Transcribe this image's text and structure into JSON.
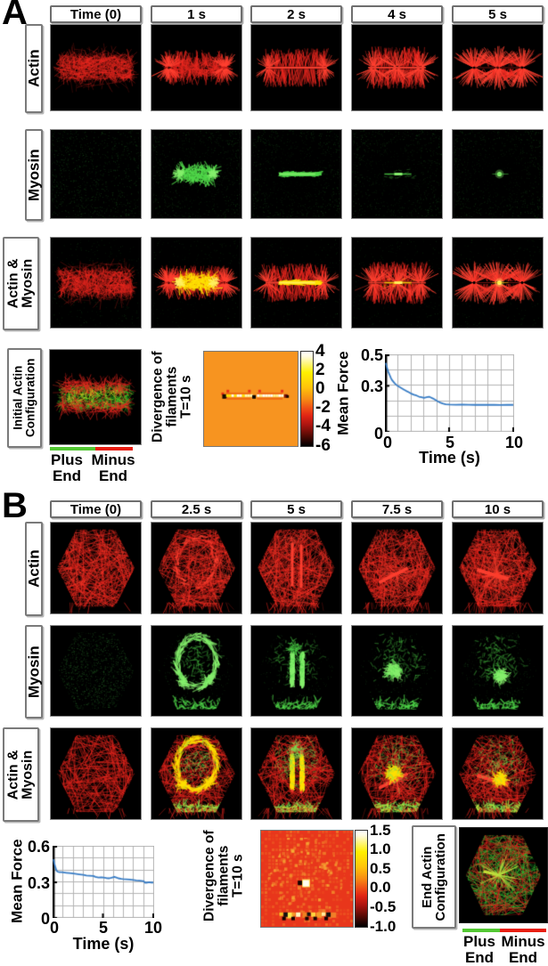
{
  "panelA": {
    "letter": "A",
    "columns": [
      "Time (0)",
      "1 s",
      "2 s",
      "4 s",
      "5 s"
    ],
    "row_labels": {
      "actin": "Actin",
      "myosin": "Myosin",
      "actin_myosin": "Actin &\nMyosin"
    },
    "init_config_label": "Initial Actin\nConfiguration",
    "legend": {
      "plus": "Plus End",
      "minus": "Minus End"
    },
    "divergence": {
      "label": "Divergence of\nfilaments",
      "time": "T=10 s",
      "colorbar_ticks": [
        "4",
        "2",
        "0",
        "-2",
        "-4",
        "-6"
      ]
    }
  },
  "panelB": {
    "letter": "B",
    "columns": [
      "Time (0)",
      "2.5 s",
      "5 s",
      "7.5 s",
      "10 s"
    ],
    "row_labels": {
      "actin": "Actin",
      "myosin": "Myosin",
      "actin_myosin": "Actin &\nMyosin"
    },
    "end_config_label": "End Actin\nConfiguration",
    "legend": {
      "plus": "Plus End",
      "minus": "Minus End"
    },
    "divergence": {
      "label": "Divergence of\nfilaments",
      "time": "T=10 s",
      "colorbar_ticks": [
        "1.5",
        "1.0",
        "0.5",
        "0.0",
        "-0.5",
        "-1.0"
      ]
    }
  },
  "colors": {
    "actin_red": "#e8261e",
    "actin_red_bright": "#ff4030",
    "myosin_green": "#50d84a",
    "myosin_green_bright": "#86ef6d",
    "overlap_yellow": "#ffe000",
    "overlap_yellow_bright": "#fff060",
    "heatmap_a_bg": "#f79420",
    "heatmap_b_bg": "#e8361b",
    "curve_blue": "#3a7ec6",
    "legend_plus_green": "#52c832",
    "legend_minus_red": "#e81d10"
  },
  "chart_data": [
    {
      "id": "mean-force-panel-a",
      "type": "line",
      "ylabel": "Mean Force",
      "xlabel": "Time (s)",
      "xlim": [
        0,
        10
      ],
      "ylim": [
        0,
        0.5
      ],
      "ytick_labels": [
        "0.5",
        "0.3",
        "0"
      ],
      "ytick_vals": [
        0.5,
        0.3,
        0
      ],
      "xtick_labels": [
        "0",
        "5",
        "10"
      ],
      "xtick_vals": [
        0,
        5,
        10
      ],
      "grid": true,
      "legend_position": "none",
      "x": [
        0,
        0.1,
        0.2,
        0.3,
        0.4,
        0.5,
        0.7,
        0.9,
        1.0,
        1.2,
        1.4,
        1.6,
        1.8,
        2.0,
        2.2,
        2.4,
        2.6,
        2.8,
        3.0,
        3.2,
        3.4,
        3.5,
        3.7,
        3.9,
        4.1,
        4.3,
        4.5,
        4.7,
        5.0,
        5.5,
        6.0,
        6.5,
        7.0,
        7.5,
        8.0,
        8.5,
        9.0,
        9.5,
        10
      ],
      "y": [
        0.455,
        0.42,
        0.395,
        0.375,
        0.355,
        0.34,
        0.32,
        0.305,
        0.3,
        0.29,
        0.28,
        0.27,
        0.262,
        0.252,
        0.245,
        0.24,
        0.232,
        0.228,
        0.224,
        0.228,
        0.232,
        0.228,
        0.22,
        0.21,
        0.2,
        0.192,
        0.186,
        0.182,
        0.18,
        0.179,
        0.18,
        0.179,
        0.178,
        0.179,
        0.178,
        0.178,
        0.177,
        0.178,
        0.178
      ]
    },
    {
      "id": "mean-force-panel-b",
      "type": "line",
      "ylabel": "Mean Force",
      "xlabel": "Time (s)",
      "xlim": [
        0,
        10
      ],
      "ylim": [
        0,
        0.6
      ],
      "ytick_labels": [
        "0.6",
        "0.3",
        "0"
      ],
      "ytick_vals": [
        0.6,
        0.3,
        0
      ],
      "xtick_labels": [
        "0",
        "5",
        "10"
      ],
      "xtick_vals": [
        0,
        5,
        10
      ],
      "grid": true,
      "legend_position": "none",
      "x": [
        0,
        0.1,
        0.2,
        0.3,
        0.4,
        0.6,
        0.8,
        1.0,
        1.3,
        1.6,
        2.0,
        2.3,
        2.6,
        3.0,
        3.3,
        3.6,
        4.0,
        4.2,
        4.5,
        4.8,
        5.0,
        5.3,
        5.6,
        5.9,
        6.1,
        6.3,
        6.5,
        6.8,
        7.0,
        7.3,
        7.6,
        8.0,
        8.3,
        8.6,
        9.0,
        9.2,
        9.4,
        9.6,
        9.8,
        10
      ],
      "y": [
        0.5,
        0.46,
        0.43,
        0.405,
        0.395,
        0.39,
        0.39,
        0.388,
        0.385,
        0.382,
        0.378,
        0.375,
        0.372,
        0.368,
        0.362,
        0.36,
        0.358,
        0.35,
        0.345,
        0.347,
        0.344,
        0.34,
        0.338,
        0.345,
        0.35,
        0.345,
        0.338,
        0.334,
        0.332,
        0.33,
        0.327,
        0.323,
        0.32,
        0.318,
        0.315,
        0.3,
        0.302,
        0.304,
        0.302,
        0.302
      ]
    }
  ],
  "heatmaps": [
    {
      "id": "divergence-a",
      "time": "T=10 s",
      "value_range": [
        -6,
        4
      ],
      "background_value": 0
    },
    {
      "id": "divergence-b",
      "time": "T=10 s",
      "value_range": [
        -1.0,
        1.5
      ],
      "background_value": 0
    }
  ]
}
